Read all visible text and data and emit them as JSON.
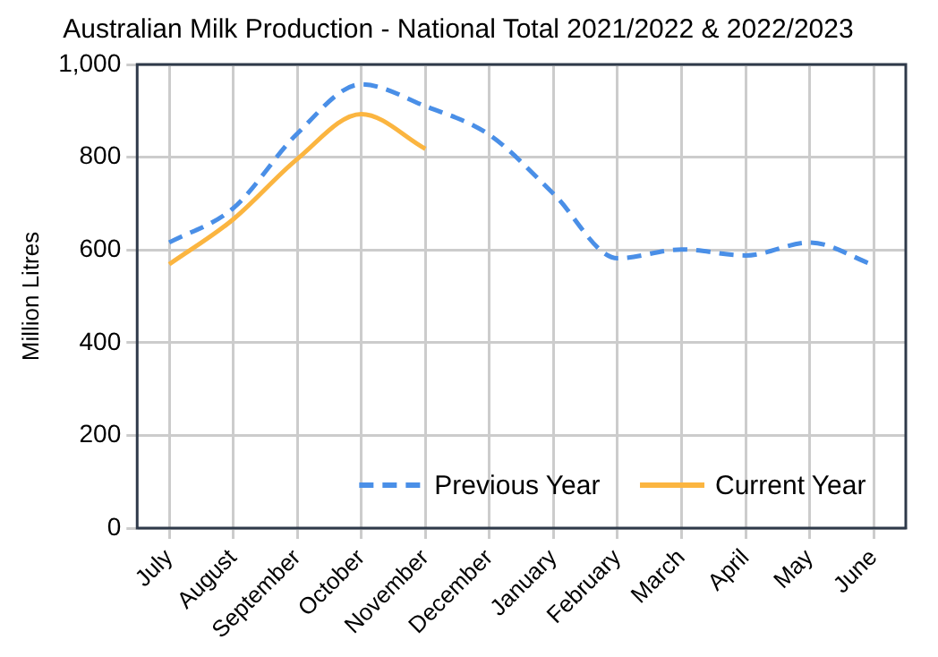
{
  "chart_data": {
    "type": "line",
    "title": "Australian Milk Production - National Total 2021/2022 & 2022/2023",
    "ylabel": "Million Litres",
    "categories": [
      "July",
      "August",
      "September",
      "October",
      "November",
      "December",
      "January",
      "February",
      "March",
      "April",
      "May",
      "June"
    ],
    "series": [
      {
        "name": "Previous Year",
        "color": "#4a8fe7",
        "line_style": "dashed",
        "values": [
          616,
          690,
          851,
          957,
          910,
          848,
          721,
          582,
          601,
          588,
          616,
          567
        ]
      },
      {
        "name": "Current Year",
        "color": "#fbb540",
        "line_style": "solid",
        "values": [
          569,
          666,
          796,
          893,
          818,
          null,
          null,
          null,
          null,
          null,
          null,
          null
        ]
      }
    ],
    "ylim": [
      0,
      1000
    ],
    "yticks": [
      {
        "value": 0,
        "label": "0"
      },
      {
        "value": 200,
        "label": "200"
      },
      {
        "value": 400,
        "label": "400"
      },
      {
        "value": 600,
        "label": "600"
      },
      {
        "value": 800,
        "label": "800"
      },
      {
        "value": 1000,
        "label": "1,000"
      }
    ],
    "grid": true,
    "legend": "bottom right",
    "marker": "none"
  }
}
